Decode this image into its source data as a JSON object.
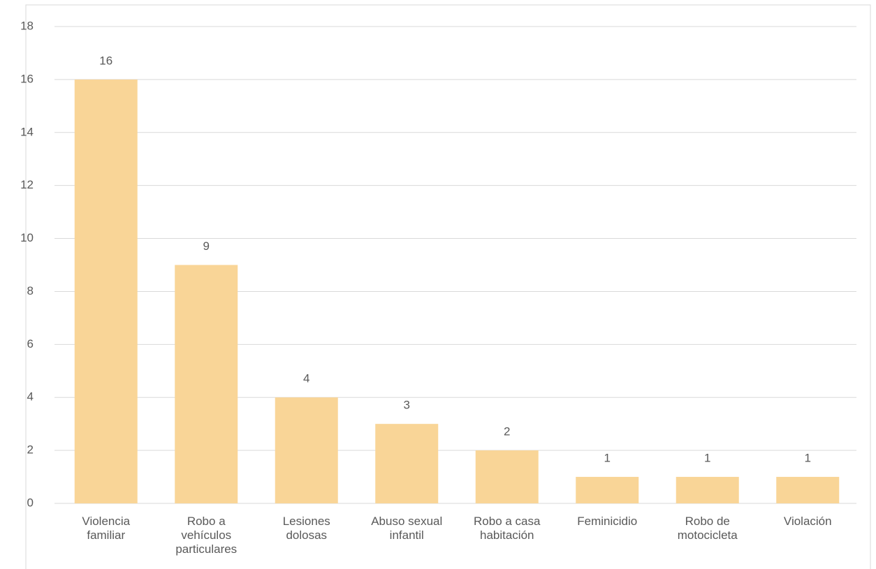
{
  "chart_data": {
    "type": "bar",
    "categories": [
      "Violencia familiar",
      "Robo a vehículos particulares",
      "Lesiones dolosas",
      "Abuso sexual infantil",
      "Robo a casa habitación",
      "Feminicidio",
      "Robo de motocicleta",
      "Violación"
    ],
    "values": [
      16,
      9,
      4,
      3,
      2,
      1,
      1,
      1
    ],
    "color": "#f9d597",
    "ylim": [
      0,
      18
    ],
    "yticks": [
      0,
      2,
      4,
      6,
      8,
      10,
      12,
      14,
      16,
      18
    ],
    "grid": true
  }
}
